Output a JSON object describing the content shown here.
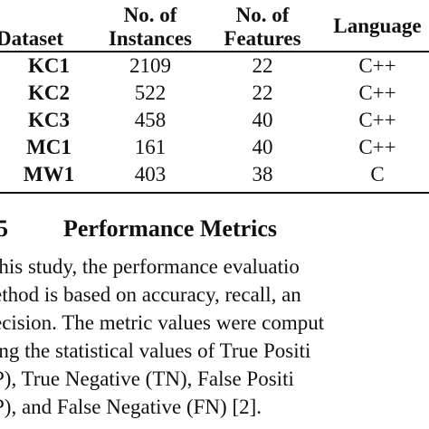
{
  "table": {
    "headers": {
      "dataset": "Dataset",
      "instances_line1": "No. of",
      "instances_line2": "Instances",
      "features_line1": "No. of",
      "features_line2": "Features",
      "language": "Language"
    },
    "rows": [
      {
        "dataset": "KC1",
        "instances": "2109",
        "features": "22",
        "language": "C++"
      },
      {
        "dataset": "KC2",
        "instances": "522",
        "features": "22",
        "language": "C++"
      },
      {
        "dataset": "KC3",
        "instances": "458",
        "features": "40",
        "language": "C++"
      },
      {
        "dataset": "MC1",
        "instances": "161",
        "features": "40",
        "language": "C++"
      },
      {
        "dataset": "MW1",
        "instances": "403",
        "features": "38",
        "language": "C"
      }
    ]
  },
  "section": {
    "number": "5",
    "title": "Performance Metrics"
  },
  "paragraph": {
    "lines": [
      "this study, the performance evaluatio",
      "ethod is based on accuracy, recall, an",
      "ecision. The metric values were comput",
      "ing the statistical values of True Positi",
      "P), True Negative (TN), False Positi",
      "P), and False Negative (FN) [2]."
    ]
  }
}
